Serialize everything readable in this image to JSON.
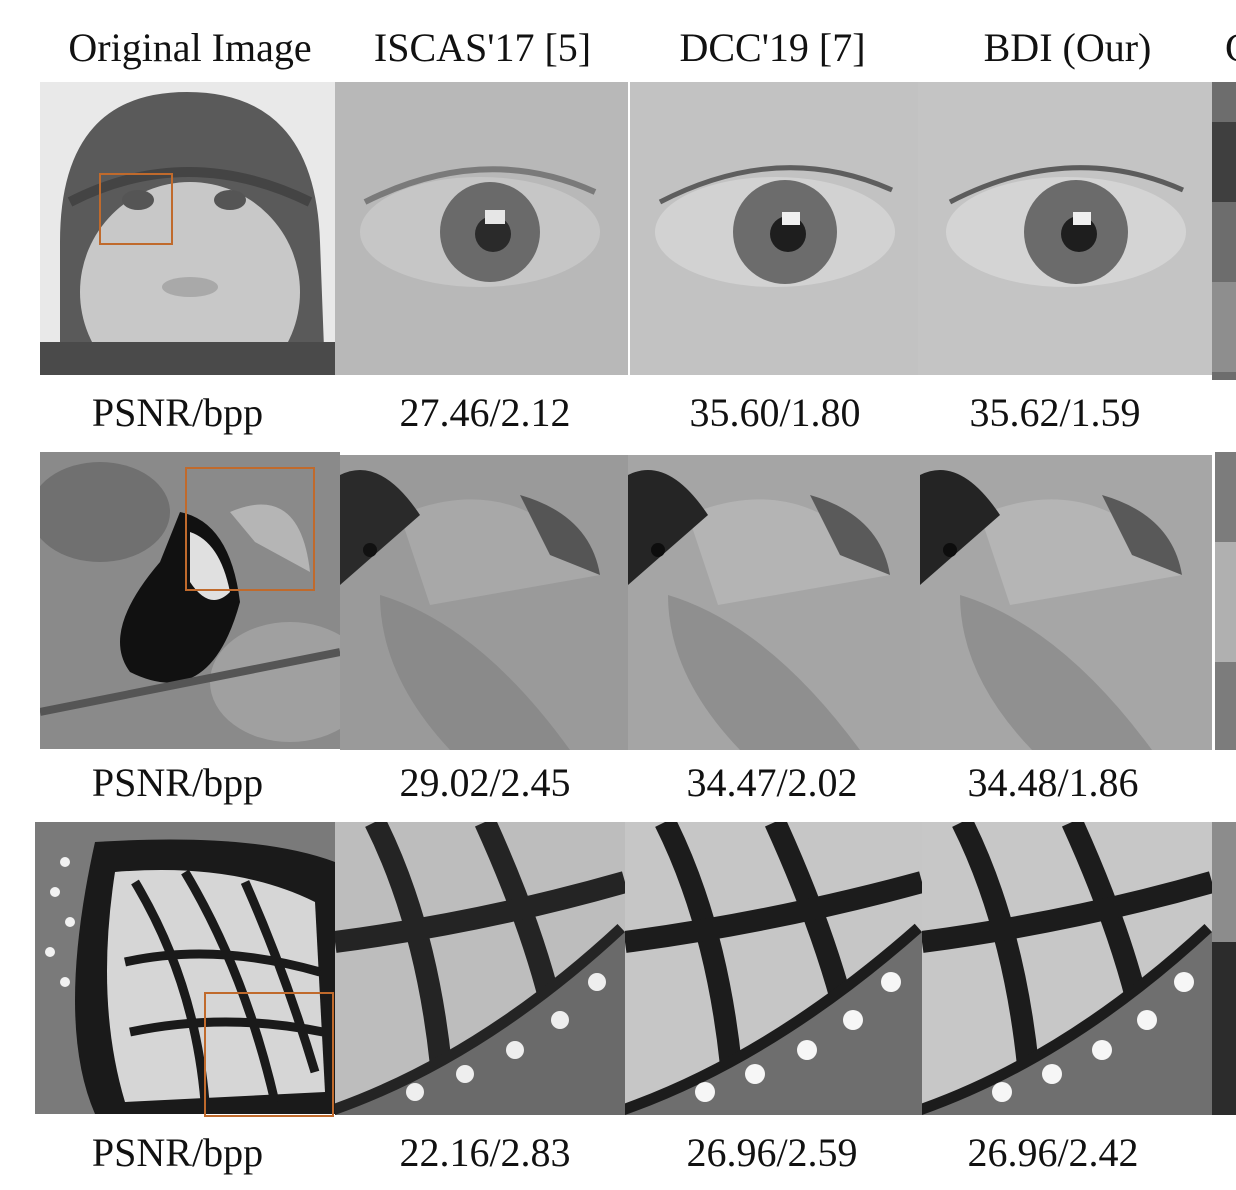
{
  "columns": [
    "Original Image",
    "ISCAS'17 [5]",
    "DCC'19 [7]",
    "BDI (Our)",
    "C"
  ],
  "rows": [
    {
      "subject": "baby",
      "metric_label": "PSNR/bpp",
      "results": [
        "27.46/2.12",
        "35.60/1.80",
        "35.62/1.59"
      ]
    },
    {
      "subject": "toucan",
      "metric_label": "PSNR/bpp",
      "results": [
        "29.02/2.45",
        "34.47/2.02",
        "34.48/1.86"
      ]
    },
    {
      "subject": "butterfly",
      "metric_label": "PSNR/bpp",
      "results": [
        "22.16/2.83",
        "26.96/2.59",
        "26.96/2.42"
      ]
    }
  ],
  "colors": {
    "zoom_box": "#c06a2c"
  }
}
